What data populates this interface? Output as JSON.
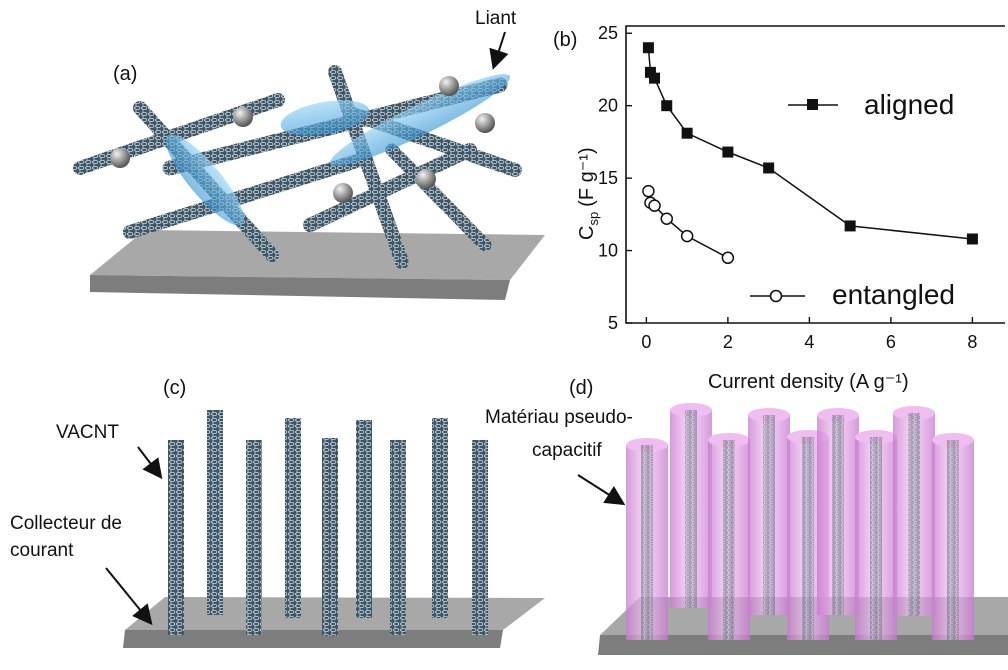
{
  "panels": {
    "a": {
      "label": "(a)",
      "binder_label": "Liant"
    },
    "b": {
      "label": "(b)"
    },
    "c": {
      "label": "(c)",
      "vacnt_label": "VACNT",
      "collector_line1": "Collecteur de",
      "collector_line2": "courant"
    },
    "d": {
      "label": "(d)",
      "material_line1": "Matériau pseudo-",
      "material_line2": "capacitif"
    }
  },
  "colors": {
    "substrate_top": "#a8a8a8",
    "substrate_side": "#7d7d7d",
    "nanotube": "#3e5565",
    "binder": "#5fb6e8",
    "pseudo_material": "#e8a8e8",
    "particle": "#8a8a8a"
  },
  "chart_data": {
    "type": "scatter",
    "xlabel": "Current density (A g⁻¹)",
    "ylabel": "C",
    "ylabel_sub": "sp",
    "ylabel_unit": "(F g⁻¹)",
    "xlim": [
      -0.5,
      8.8
    ],
    "ylim": [
      5,
      25.5
    ],
    "xticks": [
      0,
      2,
      4,
      6,
      8
    ],
    "yticks": [
      5,
      10,
      15,
      20,
      25
    ],
    "grid": false,
    "legend_position": "inside-right",
    "series": [
      {
        "name": "aligned",
        "marker": "filled-square",
        "x": [
          0.05,
          0.1,
          0.2,
          0.5,
          1,
          2,
          3,
          5,
          8
        ],
        "y": [
          24,
          22.3,
          21.9,
          20,
          18.1,
          16.8,
          15.7,
          11.7,
          10.8
        ]
      },
      {
        "name": "entangled",
        "marker": "open-circle",
        "x": [
          0.05,
          0.1,
          0.2,
          0.5,
          1,
          2
        ],
        "y": [
          14.1,
          13.3,
          13.1,
          12.2,
          11,
          9.5
        ]
      }
    ]
  }
}
